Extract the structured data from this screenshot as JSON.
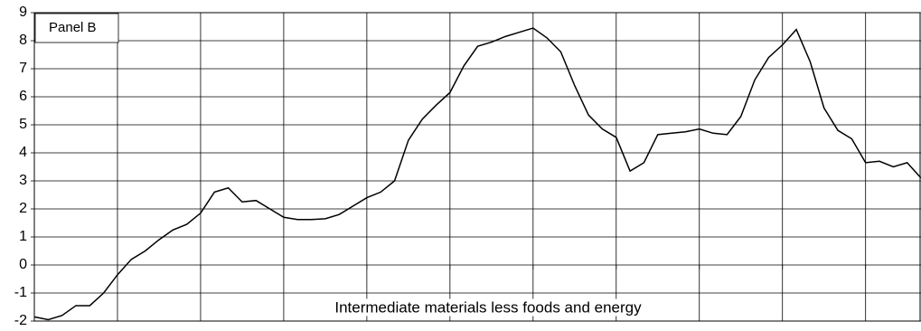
{
  "chart_data": {
    "type": "line",
    "panel_label": "Panel B",
    "annotation": "Intermediate materials less foods and energy",
    "x": [
      0,
      1,
      2,
      3,
      4,
      5,
      6,
      7,
      8,
      9,
      10,
      11,
      12,
      13,
      14,
      15,
      16,
      17,
      18,
      19,
      20,
      21,
      22,
      23,
      24,
      25,
      26,
      27,
      28,
      29,
      30,
      31,
      32,
      33,
      34,
      35,
      36,
      37,
      38,
      39,
      40,
      41,
      42,
      43,
      44,
      45,
      46,
      47,
      48,
      49,
      50,
      51,
      52,
      53,
      54,
      55,
      56,
      57,
      58,
      59,
      60,
      61,
      62,
      63,
      64
    ],
    "values": [
      -1.85,
      -1.95,
      -1.8,
      -1.45,
      -1.45,
      -1.0,
      -0.35,
      0.2,
      0.5,
      0.9,
      1.25,
      1.45,
      1.85,
      2.6,
      2.75,
      2.25,
      2.3,
      2.0,
      1.7,
      1.62,
      1.62,
      1.65,
      1.8,
      2.1,
      2.4,
      2.6,
      3.0,
      4.45,
      5.2,
      5.7,
      6.15,
      7.1,
      7.8,
      7.95,
      8.15,
      8.3,
      8.45,
      8.1,
      7.6,
      6.4,
      5.35,
      4.85,
      4.55,
      3.35,
      3.65,
      4.65,
      4.7,
      4.75,
      4.85,
      4.7,
      4.65,
      5.3,
      6.6,
      7.4,
      7.85,
      8.4,
      7.25,
      5.6,
      4.8,
      4.5,
      3.65,
      3.7,
      3.5,
      3.65,
      3.1
    ],
    "color": "#000000",
    "xlim": [
      0,
      64
    ],
    "xticks": [
      0,
      6,
      12,
      18,
      24,
      30,
      36,
      42,
      48,
      54,
      60
    ],
    "ylim": [
      -2,
      9
    ],
    "yticks": [
      -2,
      -1,
      0,
      1,
      2,
      3,
      4,
      5,
      6,
      7,
      8,
      9
    ],
    "grid": true
  }
}
